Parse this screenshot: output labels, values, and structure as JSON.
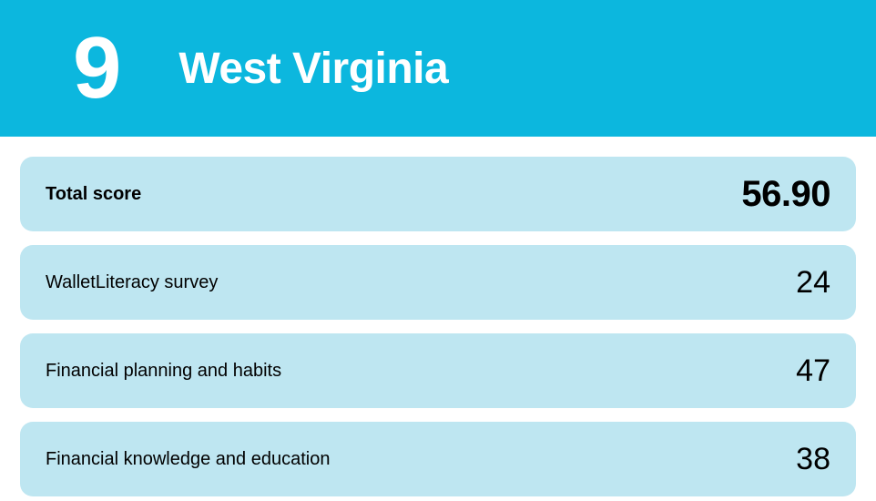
{
  "header": {
    "rank": "9",
    "state": "West Virginia",
    "background_color": "#0cb7de",
    "text_color": "#ffffff",
    "rank_fontsize": 96,
    "state_fontsize": 48
  },
  "body": {
    "background_color": "#ffffff",
    "row_background_color": "#bee6f1",
    "row_radius": 14,
    "label_color": "#000000",
    "value_color": "#000000",
    "label_fontsize": 20,
    "value_fontsize": 34,
    "total_value_fontsize": 40
  },
  "rows": [
    {
      "label": "Total score",
      "value": "56.90",
      "is_total": true
    },
    {
      "label": "WalletLiteracy survey",
      "value": "24",
      "is_total": false
    },
    {
      "label": "Financial planning and habits",
      "value": "47",
      "is_total": false
    },
    {
      "label": "Financial knowledge and education",
      "value": "38",
      "is_total": false
    }
  ]
}
